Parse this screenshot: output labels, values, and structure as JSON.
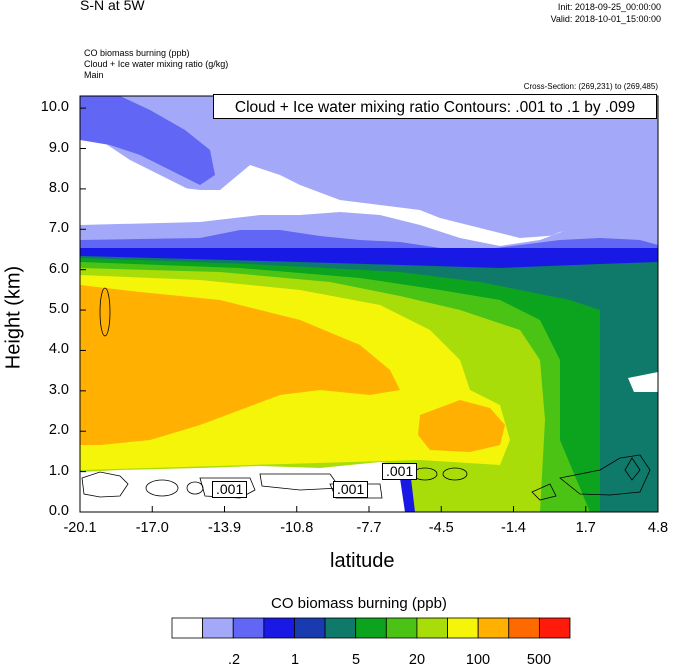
{
  "header": {
    "title": "S-N at 5W",
    "init": "Init: 2018-09-25_00:00:00",
    "valid": "Valid: 2018-10-01_15:00:00",
    "field1": "CO biomass burning   (ppb)",
    "field2": "Cloud + Ice water mixing ratio   (g/kg)",
    "field3": "Main",
    "cross_section": "Cross-Section: (269,231) to (269,485)"
  },
  "chart_data": {
    "type": "heatmap",
    "contour_label": "Cloud + Ice water mixing ratio Contours: .001 to .1 by .099",
    "xlabel": "latitude",
    "ylabel": "Height (km)",
    "xticks": [
      "-20.1",
      "-17.0",
      "-13.9",
      "-10.8",
      "-7.7",
      "-4.5",
      "-1.4",
      "1.7",
      "4.8"
    ],
    "xlim": [
      -20.1,
      4.8
    ],
    "yticks": [
      "0.0",
      "1.0",
      "2.0",
      "3.0",
      "4.0",
      "5.0",
      "6.0",
      "7.0",
      "8.0",
      "9.0",
      "10.0"
    ],
    "ylim": [
      0,
      10.3
    ],
    "contour_value_labels": [
      ".001",
      ".001",
      ".001"
    ],
    "colorbar": {
      "title": "CO biomass burning   (ppb)",
      "colors": [
        "#ffffff",
        "#a3a8f8",
        "#6166f5",
        "#1919e6",
        "#1a3bb0",
        "#0f7a6a",
        "#0ca31f",
        "#4bc315",
        "#a8dd0a",
        "#f5f50a",
        "#ffb000",
        "#ff6a00",
        "#ff1a0a"
      ],
      "labels": [
        ".2",
        "1",
        "5",
        "20",
        "100",
        "500"
      ]
    }
  }
}
